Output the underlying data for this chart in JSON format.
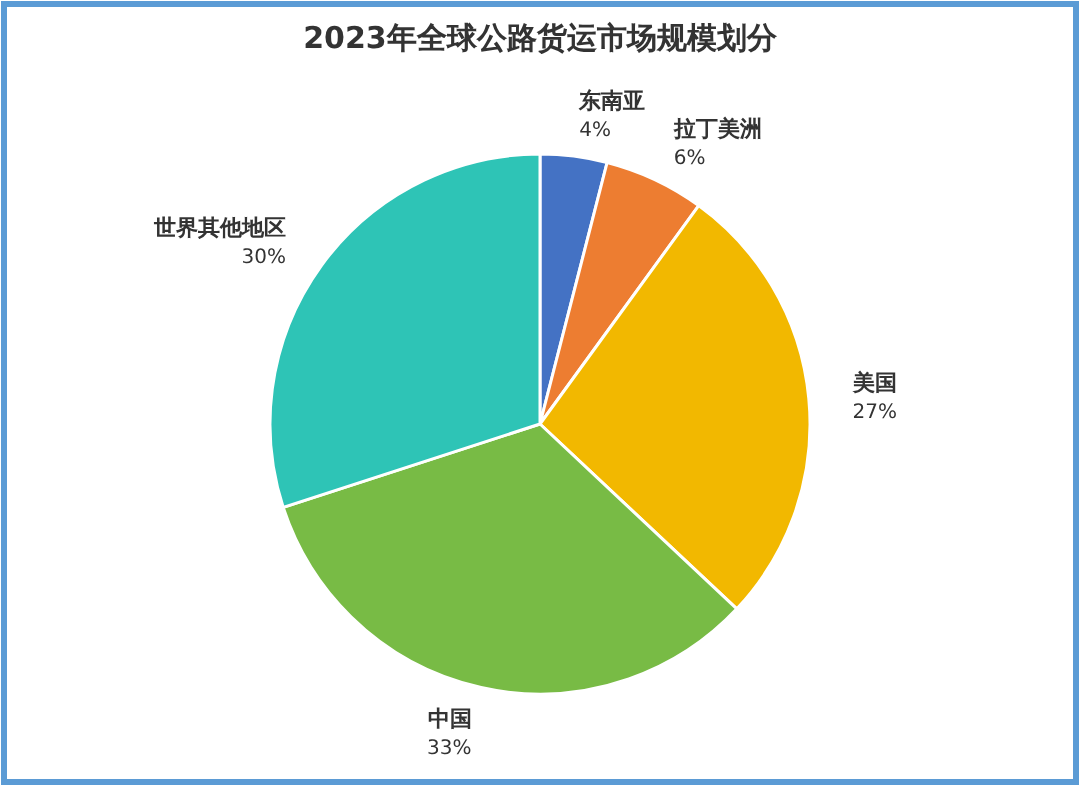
{
  "chart_data": {
    "type": "pie",
    "title": "2023年全球公路货运市场规模划分",
    "categories": [
      "东南亚",
      "拉丁美洲",
      "美国",
      "中国",
      "世界其他地区"
    ],
    "values": [
      4,
      6,
      27,
      33,
      30
    ],
    "colors": [
      "#4472c4",
      "#ed7d31",
      "#f2b800",
      "#78bb45",
      "#2ec4b6"
    ],
    "value_labels": [
      "4%",
      "6%",
      "27%",
      "33%",
      "30%"
    ]
  }
}
